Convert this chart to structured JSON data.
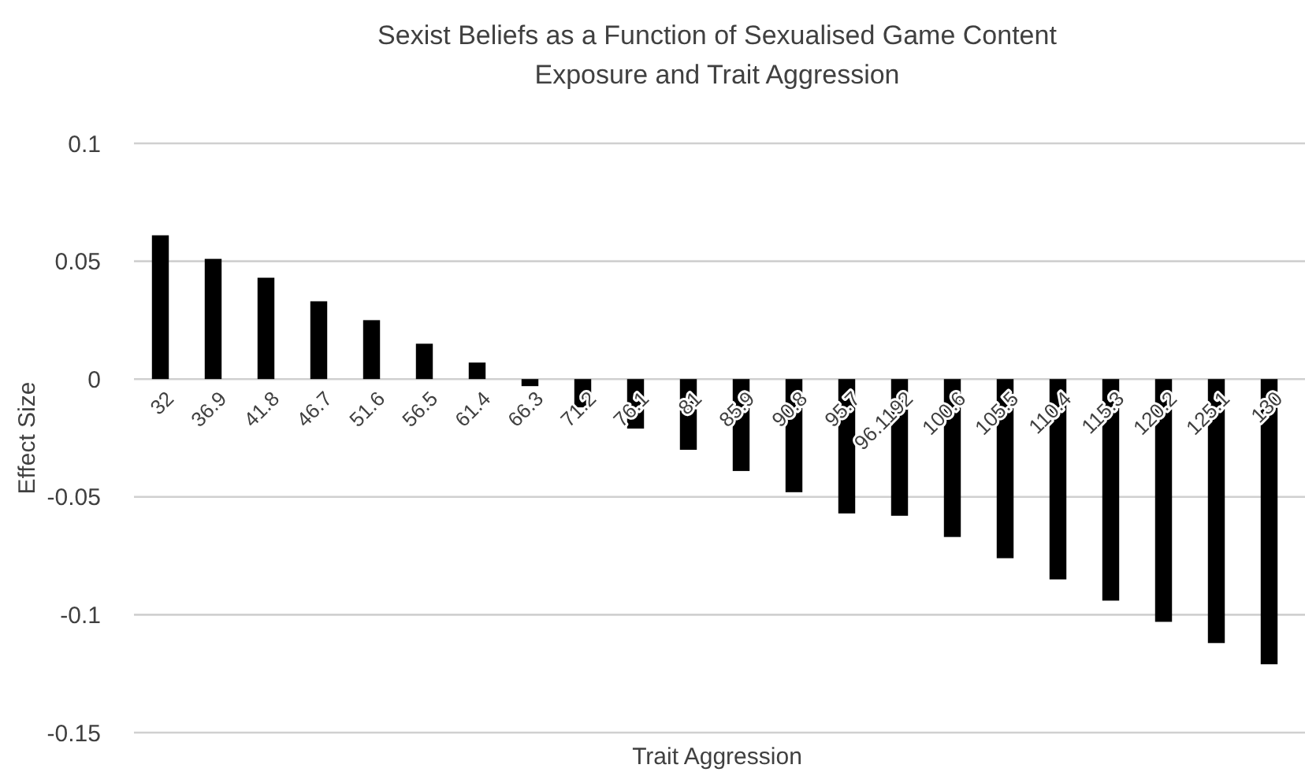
{
  "chart_data": {
    "type": "bar",
    "title": "Sexist Beliefs as a Function of Sexualised Game Content\nExposure and Trait Aggression",
    "xlabel": "Trait Aggression",
    "ylabel": "Effect Size",
    "categories": [
      "32",
      "36.9",
      "41.8",
      "46.7",
      "51.6",
      "56.5",
      "61.4",
      "66.3",
      "71.2",
      "76.1",
      "81",
      "85.9",
      "90.8",
      "95.7",
      "96.1192",
      "100.6",
      "105.5",
      "110.4",
      "115.3",
      "120.2",
      "125.1",
      "130"
    ],
    "values": [
      0.061,
      0.051,
      0.043,
      0.033,
      0.025,
      0.015,
      0.007,
      -0.003,
      -0.012,
      -0.021,
      -0.03,
      -0.039,
      -0.048,
      -0.057,
      -0.058,
      -0.067,
      -0.076,
      -0.085,
      -0.094,
      -0.103,
      -0.112,
      -0.121
    ],
    "color": "#000000",
    "ylim": [
      -0.15,
      0.1
    ],
    "yticks": [
      -0.15,
      -0.1,
      -0.05,
      0,
      0.05,
      0.1
    ],
    "grid": "y"
  }
}
